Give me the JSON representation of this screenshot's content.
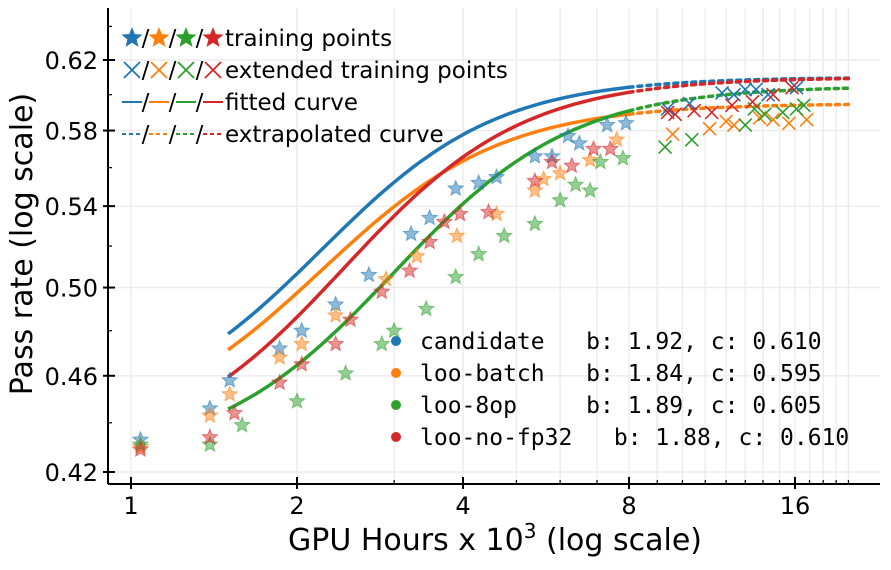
{
  "chart_data": {
    "type": "scatter",
    "title": "",
    "xlabel_main": "GPU Hours x 10",
    "xlabel_sup": "3",
    "xlabel_tail": " (log scale)",
    "ylabel": "Pass rate (log scale)",
    "xscale": "log2",
    "yscale": "log",
    "xlim": [
      0.82,
      22
    ],
    "ylim": [
      0.418,
      0.65
    ],
    "xticks": [
      1,
      2,
      4,
      8,
      16
    ],
    "xtick_labels": [
      "1",
      "2",
      "4",
      "8",
      "16"
    ],
    "yticks": [
      0.42,
      0.46,
      0.5,
      0.54,
      0.58,
      0.62
    ],
    "ytick_labels": [
      "0.42",
      "0.46",
      "0.50",
      "0.54",
      "0.58",
      "0.62"
    ],
    "grid": true,
    "legend_entries": [
      {
        "label": "training points",
        "marker": "star"
      },
      {
        "label": "extended training points",
        "marker": "x"
      },
      {
        "label": "fitted curve",
        "marker": "solid"
      },
      {
        "label": "extrapolated curve",
        "marker": "dotted"
      }
    ],
    "series": [
      {
        "name": "candidate",
        "color": "#1f77b4",
        "annotation": "candidate   b: 1.92, c: 0.610",
        "curve": {
          "type": "sigmoid",
          "c": 0.61,
          "a": 0.44,
          "x_half": 2.35,
          "k": 2.73,
          "fit_x": [
            1.5,
            8.0
          ],
          "extrap_x": [
            8.0,
            20.0
          ]
        },
        "training_points": [
          [
            1.04,
            0.433
          ],
          [
            1.39,
            0.446
          ],
          [
            1.51,
            0.458
          ],
          [
            1.86,
            0.472
          ],
          [
            2.04,
            0.48
          ],
          [
            2.35,
            0.492
          ],
          [
            2.7,
            0.506
          ],
          [
            3.22,
            0.526
          ],
          [
            3.48,
            0.534
          ],
          [
            3.88,
            0.549
          ],
          [
            4.27,
            0.552
          ],
          [
            4.6,
            0.555
          ],
          [
            5.4,
            0.566
          ],
          [
            5.8,
            0.566
          ],
          [
            6.5,
            0.573
          ],
          [
            7.3,
            0.583
          ],
          [
            7.9,
            0.584
          ],
          [
            6.2,
            0.577
          ]
        ],
        "extended_points": [
          [
            9.4,
            0.592
          ],
          [
            10.3,
            0.595
          ],
          [
            11.8,
            0.601
          ],
          [
            13.0,
            0.603
          ],
          [
            14.3,
            0.6
          ],
          [
            12.4,
            0.6
          ],
          [
            16.1,
            0.604
          ],
          [
            13.6,
            0.603
          ]
        ]
      },
      {
        "name": "loo-batch",
        "color": "#ff7f0e",
        "annotation": "loo-batch   b: 1.84, c: 0.595",
        "curve": {
          "type": "sigmoid",
          "c": 0.595,
          "a": 0.434,
          "x_half": 2.35,
          "k": 2.66,
          "fit_x": [
            1.5,
            8.0
          ],
          "extrap_x": [
            8.0,
            20.0
          ]
        },
        "training_points": [
          [
            1.04,
            0.43
          ],
          [
            1.39,
            0.443
          ],
          [
            1.51,
            0.452
          ],
          [
            1.86,
            0.468
          ],
          [
            2.04,
            0.474
          ],
          [
            2.35,
            0.487
          ],
          [
            2.9,
            0.504
          ],
          [
            3.3,
            0.515
          ],
          [
            3.9,
            0.525
          ],
          [
            4.6,
            0.536
          ],
          [
            5.4,
            0.548
          ],
          [
            6.0,
            0.557
          ],
          [
            6.8,
            0.564
          ],
          [
            7.6,
            0.575
          ],
          [
            5.6,
            0.554
          ]
        ],
        "extended_points": [
          [
            9.6,
            0.578
          ],
          [
            11.2,
            0.581
          ],
          [
            12.4,
            0.583
          ],
          [
            13.8,
            0.587
          ],
          [
            14.6,
            0.586
          ],
          [
            15.6,
            0.584
          ],
          [
            16.8,
            0.586
          ],
          [
            12.0,
            0.585
          ]
        ]
      },
      {
        "name": "loo-8op",
        "color": "#2ca02c",
        "annotation": "loo-8op     b: 1.89, c: 0.605",
        "curve": {
          "type": "sigmoid",
          "c": 0.605,
          "a": 0.425,
          "x_half": 3.2,
          "k": 2.69,
          "fit_x": [
            1.5,
            8.0
          ],
          "extrap_x": [
            8.0,
            20.0
          ]
        },
        "training_points": [
          [
            1.04,
            0.431
          ],
          [
            1.39,
            0.431
          ],
          [
            1.59,
            0.439
          ],
          [
            2.0,
            0.449
          ],
          [
            2.45,
            0.461
          ],
          [
            2.85,
            0.474
          ],
          [
            3.0,
            0.48
          ],
          [
            3.43,
            0.49
          ],
          [
            3.88,
            0.505
          ],
          [
            4.27,
            0.516
          ],
          [
            4.75,
            0.525
          ],
          [
            5.4,
            0.531
          ],
          [
            6.0,
            0.543
          ],
          [
            6.8,
            0.548
          ],
          [
            7.1,
            0.563
          ],
          [
            7.8,
            0.565
          ],
          [
            6.4,
            0.551
          ]
        ],
        "extended_points": [
          [
            9.3,
            0.571
          ],
          [
            10.4,
            0.575
          ],
          [
            13.0,
            0.583
          ],
          [
            14.1,
            0.589
          ],
          [
            15.2,
            0.59
          ],
          [
            16.1,
            0.592
          ],
          [
            16.6,
            0.594
          ],
          [
            13.5,
            0.592
          ]
        ]
      },
      {
        "name": "loo-no-fp32",
        "color": "#d62728",
        "annotation": "loo-no-fp32   b: 1.88, c: 0.610",
        "curve": {
          "type": "sigmoid",
          "c": 0.61,
          "a": 0.425,
          "x_half": 2.6,
          "k": 2.68,
          "fit_x": [
            1.5,
            8.0
          ],
          "extrap_x": [
            8.0,
            20.0
          ]
        },
        "training_points": [
          [
            1.04,
            0.429
          ],
          [
            1.39,
            0.434
          ],
          [
            1.54,
            0.444
          ],
          [
            1.86,
            0.457
          ],
          [
            2.04,
            0.465
          ],
          [
            2.35,
            0.474
          ],
          [
            2.5,
            0.485
          ],
          [
            2.85,
            0.498
          ],
          [
            3.2,
            0.508
          ],
          [
            3.48,
            0.522
          ],
          [
            3.7,
            0.532
          ],
          [
            3.95,
            0.536
          ],
          [
            4.45,
            0.537
          ],
          [
            5.4,
            0.553
          ],
          [
            6.3,
            0.561
          ],
          [
            6.9,
            0.57
          ],
          [
            7.4,
            0.57
          ],
          [
            5.8,
            0.563
          ]
        ],
        "extended_points": [
          [
            9.7,
            0.589
          ],
          [
            10.5,
            0.591
          ],
          [
            11.3,
            0.59
          ],
          [
            12.3,
            0.594
          ],
          [
            14.6,
            0.6
          ],
          [
            15.8,
            0.604
          ],
          [
            9.4,
            0.59
          ],
          [
            13.4,
            0.596
          ]
        ]
      }
    ]
  }
}
